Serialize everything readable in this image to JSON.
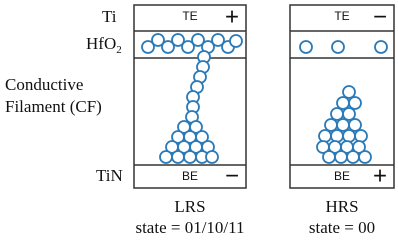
{
  "labels": {
    "top_electrode": "Ti",
    "oxide": {
      "text": "HfO",
      "subscript": "2"
    },
    "filament_line1": "Conductive",
    "filament_line2": "Filament (CF)",
    "bottom_electrode": "TiN"
  },
  "devices": [
    {
      "top": "TE",
      "top_sign": "+",
      "bottom": "BE",
      "bottom_sign": "−",
      "name": "LRS",
      "state": "state = 01/10/11"
    },
    {
      "top": "TE",
      "top_sign": "−",
      "bottom": "BE",
      "bottom_sign": "+",
      "name": "HRS",
      "state": "state = 00"
    }
  ]
}
